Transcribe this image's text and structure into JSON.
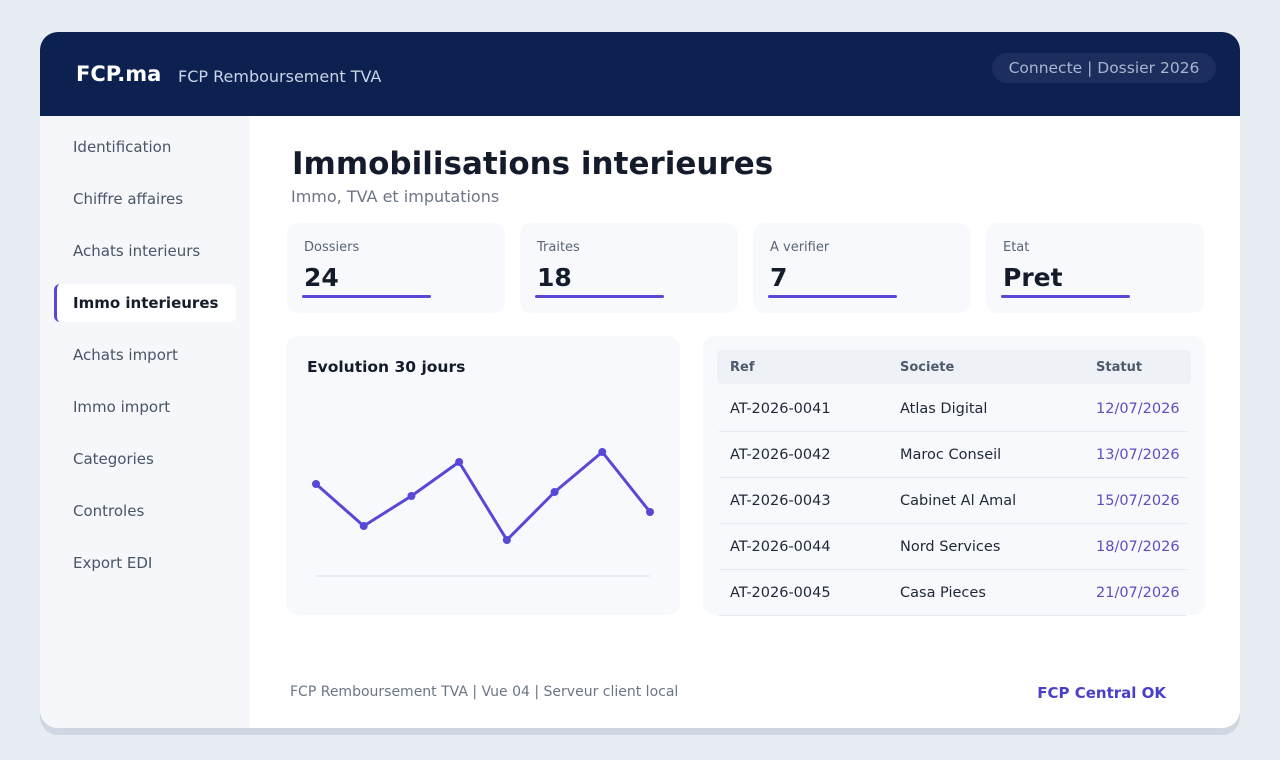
{
  "header": {
    "brand": "FCP.ma",
    "app_title": "FCP Remboursement TVA",
    "status": "Connecte | Dossier 2026"
  },
  "sidebar": {
    "items": [
      {
        "label": "Identification",
        "active": false
      },
      {
        "label": "Chiffre affaires",
        "active": false
      },
      {
        "label": "Achats interieurs",
        "active": false
      },
      {
        "label": "Immo interieures",
        "active": true
      },
      {
        "label": "Achats import",
        "active": false
      },
      {
        "label": "Immo import",
        "active": false
      },
      {
        "label": "Categories",
        "active": false
      },
      {
        "label": "Controles",
        "active": false
      },
      {
        "label": "Export EDI",
        "active": false
      }
    ]
  },
  "page": {
    "title": "Immobilisations interieures",
    "subtitle": "Immo, TVA et imputations"
  },
  "stats": [
    {
      "label": "Dossiers",
      "value": "24"
    },
    {
      "label": "Traites",
      "value": "18"
    },
    {
      "label": "A verifier",
      "value": "7"
    },
    {
      "label": "Etat",
      "value": "Pret"
    }
  ],
  "chart_data": {
    "type": "line",
    "title": "Evolution 30 jours",
    "series": [
      {
        "values": [
          46,
          25,
          40,
          57,
          18,
          42,
          62,
          32
        ]
      }
    ],
    "ylim": [
      0,
      100
    ],
    "color": "#5848d6",
    "grid": false
  },
  "table": {
    "columns": [
      "Ref",
      "Societe",
      "Statut"
    ],
    "rows": [
      [
        "AT-2026-0041",
        "Atlas Digital",
        "12/07/2026"
      ],
      [
        "AT-2026-0042",
        "Maroc Conseil",
        "13/07/2026"
      ],
      [
        "AT-2026-0043",
        "Cabinet Al Amal",
        "15/07/2026"
      ],
      [
        "AT-2026-0044",
        "Nord Services",
        "18/07/2026"
      ],
      [
        "AT-2026-0045",
        "Casa Pieces",
        "21/07/2026"
      ]
    ]
  },
  "footer": {
    "text": "FCP Remboursement TVA | Vue 04 | Serveur client local",
    "status": "FCP Central OK"
  },
  "colors": {
    "header_bg": "#0d2150",
    "accent": "#5848d6"
  }
}
